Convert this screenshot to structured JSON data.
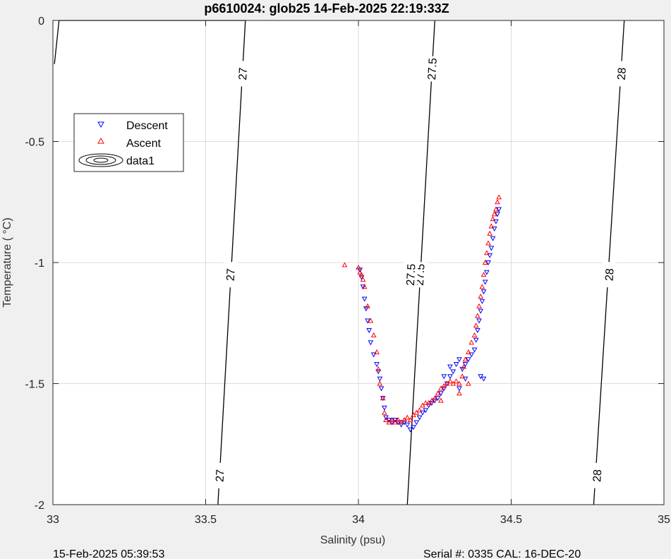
{
  "chart_data": {
    "type": "scatter",
    "title": "p6610024: glob25 14-Feb-2025 22:19:33Z",
    "xlabel": "Salinity (psu)",
    "ylabel": "Temperature (   °C)",
    "xlim": [
      33,
      35
    ],
    "ylim": [
      -2,
      0
    ],
    "xticks": [
      33,
      33.5,
      34,
      34.5,
      35
    ],
    "xtick_labels": [
      "33",
      "33.5",
      "34",
      "34.5",
      "35"
    ],
    "yticks": [
      0,
      -0.5,
      -1,
      -1.5,
      -2
    ],
    "ytick_labels": [
      "0",
      "-0.5",
      "-1",
      "-1.5",
      "-2"
    ],
    "grid": true,
    "legend_position": "upper-left",
    "legend": [
      "Descent",
      "Ascent",
      "data1"
    ],
    "series": [
      {
        "name": "Descent",
        "marker": "triangle-down",
        "color": "#0000ff",
        "points": [
          [
            34.46,
            -0.78
          ],
          [
            34.455,
            -0.8
          ],
          [
            34.45,
            -0.83
          ],
          [
            34.445,
            -0.86
          ],
          [
            34.44,
            -0.9
          ],
          [
            34.435,
            -0.94
          ],
          [
            34.43,
            -0.97
          ],
          [
            34.425,
            -1.0
          ],
          [
            34.42,
            -1.04
          ],
          [
            34.415,
            -1.08
          ],
          [
            34.41,
            -1.12
          ],
          [
            34.405,
            -1.16
          ],
          [
            34.4,
            -1.2
          ],
          [
            34.395,
            -1.24
          ],
          [
            34.39,
            -1.28
          ],
          [
            34.385,
            -1.32
          ],
          [
            34.38,
            -1.36
          ],
          [
            34.37,
            -1.38
          ],
          [
            34.36,
            -1.4
          ],
          [
            34.35,
            -1.42
          ],
          [
            34.34,
            -1.44
          ],
          [
            34.33,
            -1.4
          ],
          [
            34.32,
            -1.42
          ],
          [
            34.31,
            -1.45
          ],
          [
            34.3,
            -1.47
          ],
          [
            34.29,
            -1.5
          ],
          [
            34.28,
            -1.52
          ],
          [
            34.27,
            -1.54
          ],
          [
            34.26,
            -1.56
          ],
          [
            34.25,
            -1.57
          ],
          [
            34.24,
            -1.58
          ],
          [
            34.23,
            -1.59
          ],
          [
            34.22,
            -1.61
          ],
          [
            34.21,
            -1.62
          ],
          [
            34.2,
            -1.64
          ],
          [
            34.19,
            -1.66
          ],
          [
            34.18,
            -1.68
          ],
          [
            34.17,
            -1.69
          ],
          [
            34.16,
            -1.67
          ],
          [
            34.15,
            -1.66
          ],
          [
            34.14,
            -1.67
          ],
          [
            34.13,
            -1.66
          ],
          [
            34.12,
            -1.65
          ],
          [
            34.11,
            -1.66
          ],
          [
            34.1,
            -1.65
          ],
          [
            34.09,
            -1.64
          ],
          [
            34.085,
            -1.6
          ],
          [
            34.08,
            -1.56
          ],
          [
            34.075,
            -1.52
          ],
          [
            34.07,
            -1.48
          ],
          [
            34.065,
            -1.45
          ],
          [
            34.06,
            -1.42
          ],
          [
            34.05,
            -1.38
          ],
          [
            34.04,
            -1.33
          ],
          [
            34.035,
            -1.28
          ],
          [
            34.03,
            -1.24
          ],
          [
            34.025,
            -1.19
          ],
          [
            34.02,
            -1.15
          ],
          [
            34.015,
            -1.1
          ],
          [
            34.01,
            -1.06
          ],
          [
            34.005,
            -1.03
          ],
          [
            34.4,
            -1.47
          ],
          [
            34.41,
            -1.48
          ],
          [
            34.35,
            -1.48
          ],
          [
            34.33,
            -1.52
          ],
          [
            34.3,
            -1.43
          ],
          [
            34.28,
            -1.47
          ]
        ]
      },
      {
        "name": "Ascent",
        "marker": "triangle-up",
        "color": "#ff0000",
        "points": [
          [
            33.955,
            -1.01
          ],
          [
            34.0,
            -1.02
          ],
          [
            34.005,
            -1.04
          ],
          [
            34.01,
            -1.05
          ],
          [
            34.015,
            -1.07
          ],
          [
            34.02,
            -1.1
          ],
          [
            34.03,
            -1.18
          ],
          [
            34.04,
            -1.24
          ],
          [
            34.05,
            -1.3
          ],
          [
            34.06,
            -1.37
          ],
          [
            34.065,
            -1.44
          ],
          [
            34.07,
            -1.5
          ],
          [
            34.08,
            -1.56
          ],
          [
            34.085,
            -1.62
          ],
          [
            34.09,
            -1.65
          ],
          [
            34.1,
            -1.66
          ],
          [
            34.11,
            -1.65
          ],
          [
            34.12,
            -1.66
          ],
          [
            34.13,
            -1.65
          ],
          [
            34.14,
            -1.66
          ],
          [
            34.15,
            -1.65
          ],
          [
            34.16,
            -1.64
          ],
          [
            34.17,
            -1.65
          ],
          [
            34.18,
            -1.63
          ],
          [
            34.19,
            -1.62
          ],
          [
            34.2,
            -1.61
          ],
          [
            34.21,
            -1.59
          ],
          [
            34.22,
            -1.58
          ],
          [
            34.23,
            -1.58
          ],
          [
            34.24,
            -1.57
          ],
          [
            34.25,
            -1.56
          ],
          [
            34.26,
            -1.54
          ],
          [
            34.27,
            -1.52
          ],
          [
            34.28,
            -1.51
          ],
          [
            34.29,
            -1.5
          ],
          [
            34.3,
            -1.49
          ],
          [
            34.31,
            -1.5
          ],
          [
            34.32,
            -1.49
          ],
          [
            34.33,
            -1.5
          ],
          [
            34.34,
            -1.47
          ],
          [
            34.345,
            -1.43
          ],
          [
            34.35,
            -1.4
          ],
          [
            34.36,
            -1.37
          ],
          [
            34.37,
            -1.33
          ],
          [
            34.38,
            -1.3
          ],
          [
            34.385,
            -1.26
          ],
          [
            34.39,
            -1.22
          ],
          [
            34.395,
            -1.18
          ],
          [
            34.4,
            -1.14
          ],
          [
            34.405,
            -1.1
          ],
          [
            34.41,
            -1.05
          ],
          [
            34.415,
            -1.0
          ],
          [
            34.42,
            -0.96
          ],
          [
            34.425,
            -0.92
          ],
          [
            34.43,
            -0.88
          ],
          [
            34.435,
            -0.85
          ],
          [
            34.44,
            -0.82
          ],
          [
            34.445,
            -0.8
          ],
          [
            34.45,
            -0.78
          ],
          [
            34.455,
            -0.75
          ],
          [
            34.46,
            -0.73
          ],
          [
            34.33,
            -1.54
          ],
          [
            34.36,
            -1.5
          ],
          [
            34.27,
            -1.57
          ]
        ]
      },
      {
        "name": "data1",
        "type": "contour",
        "color": "#000000",
        "levels": [
          {
            "label": "27",
            "line": [
              [
                33.005,
                -0.18
              ],
              [
                33.02,
                0
              ],
              [
                33.63,
                0
              ],
              [
                33.54,
                -2
              ]
            ],
            "label_positions": [
              [
                33.62,
                -0.22
              ],
              [
                33.58,
                -1.05
              ],
              [
                33.545,
                -1.88
              ]
            ]
          },
          {
            "label": "27.5",
            "line": [
              [
                34.25,
                0
              ],
              [
                34.16,
                -2
              ]
            ],
            "label_positions": [
              [
                34.24,
                -0.2
              ],
              [
                34.2,
                -1.05
              ],
              [
                34.17,
                -1.05
              ]
            ]
          },
          {
            "label": "28",
            "line": [
              [
                34.87,
                0
              ],
              [
                34.77,
                -2
              ]
            ],
            "label_positions": [
              [
                34.86,
                -0.22
              ],
              [
                34.82,
                -1.05
              ],
              [
                34.78,
                -1.88
              ]
            ]
          }
        ]
      }
    ]
  },
  "footer": {
    "left": "15-Feb-2025 05:39:53",
    "right": "Serial #: 0335  CAL: 16-DEC-20"
  }
}
